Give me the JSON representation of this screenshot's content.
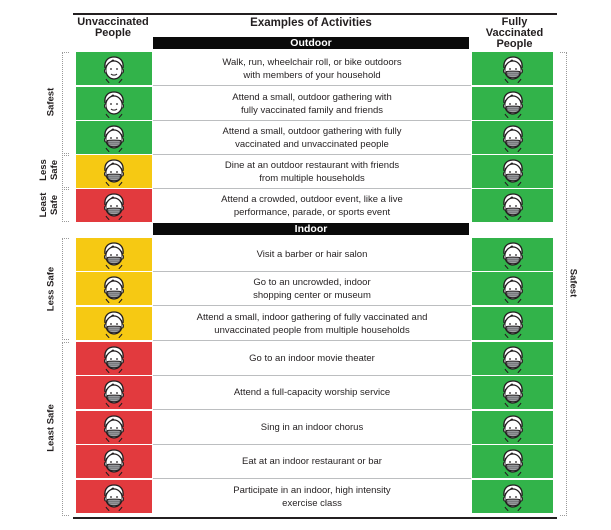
{
  "header": {
    "left": [
      "Unvaccinated",
      "People"
    ],
    "center": "Examples of Activities",
    "right": [
      "Fully",
      "Vaccinated",
      "People"
    ]
  },
  "sections": {
    "outdoor": "Outdoor",
    "indoor": "Indoor"
  },
  "colors": {
    "green": "#32b34a",
    "yellow": "#f6c913",
    "red": "#e23a3e"
  },
  "rows": [
    {
      "activity": [
        "Walk, run, wheelchair roll, or bike outdoors",
        "with members of your household"
      ],
      "unvaccinated": "green",
      "unvaccinated_mask": false
    },
    {
      "activity": [
        "Attend a small, outdoor gathering with",
        "fully vaccinated family and friends"
      ],
      "unvaccinated": "green",
      "unvaccinated_mask": false
    },
    {
      "activity": [
        "Attend a small, outdoor gathering with fully",
        "vaccinated and unvaccinated people"
      ],
      "unvaccinated": "green",
      "unvaccinated_mask": true
    },
    {
      "activity": [
        "Dine at an outdoor restaurant with friends",
        "from multiple households"
      ],
      "unvaccinated": "yellow",
      "unvaccinated_mask": true
    },
    {
      "activity": [
        "Attend a crowded, outdoor event, like a live",
        "performance, parade, or sports event"
      ],
      "unvaccinated": "red",
      "unvaccinated_mask": true
    },
    {
      "activity": [
        "Visit a barber or hair salon"
      ],
      "unvaccinated": "yellow",
      "unvaccinated_mask": true
    },
    {
      "activity": [
        "Go to an uncrowded, indoor",
        "shopping center or museum"
      ],
      "unvaccinated": "yellow",
      "unvaccinated_mask": true
    },
    {
      "activity": [
        "Attend a small, indoor gathering of fully vaccinated and",
        "unvaccinated people from multiple households"
      ],
      "unvaccinated": "yellow",
      "unvaccinated_mask": true
    },
    {
      "activity": [
        "Go to an indoor movie theater"
      ],
      "unvaccinated": "red",
      "unvaccinated_mask": true
    },
    {
      "activity": [
        "Attend a full-capacity worship service"
      ],
      "unvaccinated": "red",
      "unvaccinated_mask": true
    },
    {
      "activity": [
        "Sing in an indoor chorus"
      ],
      "unvaccinated": "red",
      "unvaccinated_mask": true
    },
    {
      "activity": [
        "Eat at an indoor restaurant or bar"
      ],
      "unvaccinated": "red",
      "unvaccinated_mask": true
    },
    {
      "activity": [
        "Participate in an indoor, high intensity",
        "exercise class"
      ],
      "unvaccinated": "red",
      "unvaccinated_mask": true
    }
  ],
  "vaccinated_column": {
    "color": "green",
    "mask": true
  },
  "side_labels": {
    "safest": "Safest",
    "less_safe_2line": [
      "Less",
      "Safe"
    ],
    "least_safe_2line": [
      "Least",
      "Safe"
    ],
    "less_safe": "Less Safe",
    "least_safe": "Least Safe",
    "right_safest": "Safest"
  }
}
